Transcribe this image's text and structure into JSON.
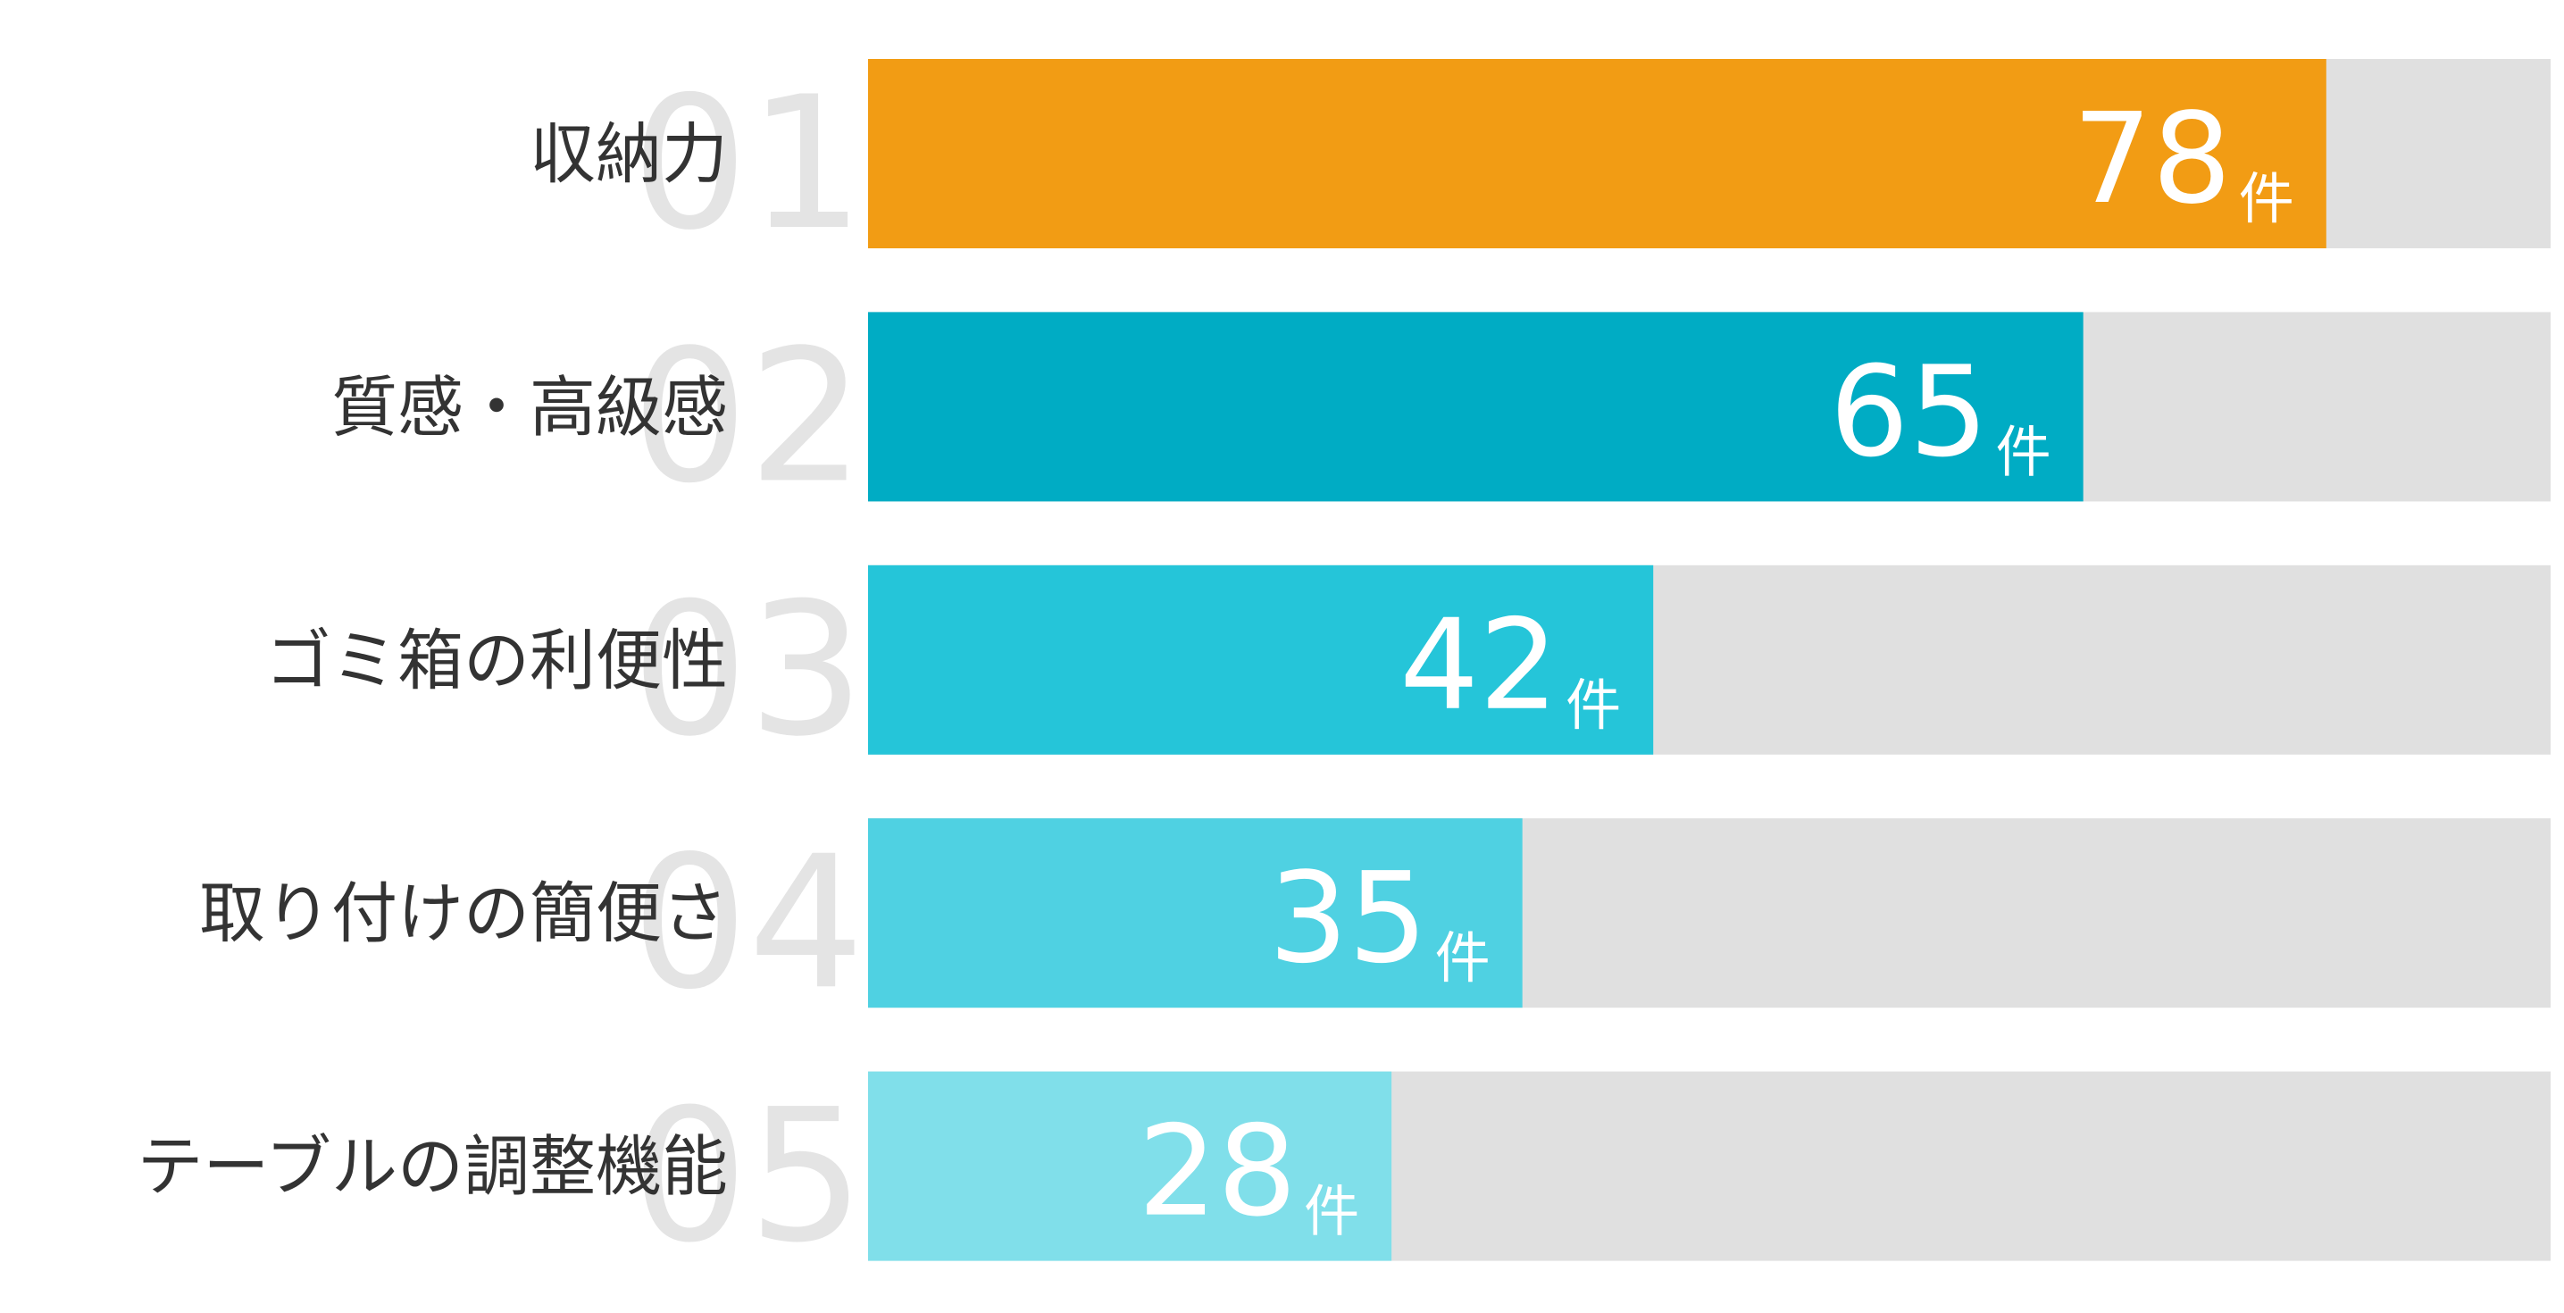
{
  "chart_data": {
    "type": "bar",
    "categories": [
      "収納力",
      "質感・高級感",
      "ゴミ箱の利便性",
      "取り付けの簡便さ",
      "テーブルの調整機能"
    ],
    "ranks": [
      "01",
      "02",
      "03",
      "04",
      "05"
    ],
    "values": [
      78,
      65,
      42,
      35,
      28
    ],
    "unit": "件",
    "colors": [
      "#f29c14",
      "#00acc4",
      "#25c5d9",
      "#4fd1e2",
      "#80dfea"
    ],
    "track_color": "#e0e0e0",
    "xlim": [
      0,
      90
    ]
  }
}
